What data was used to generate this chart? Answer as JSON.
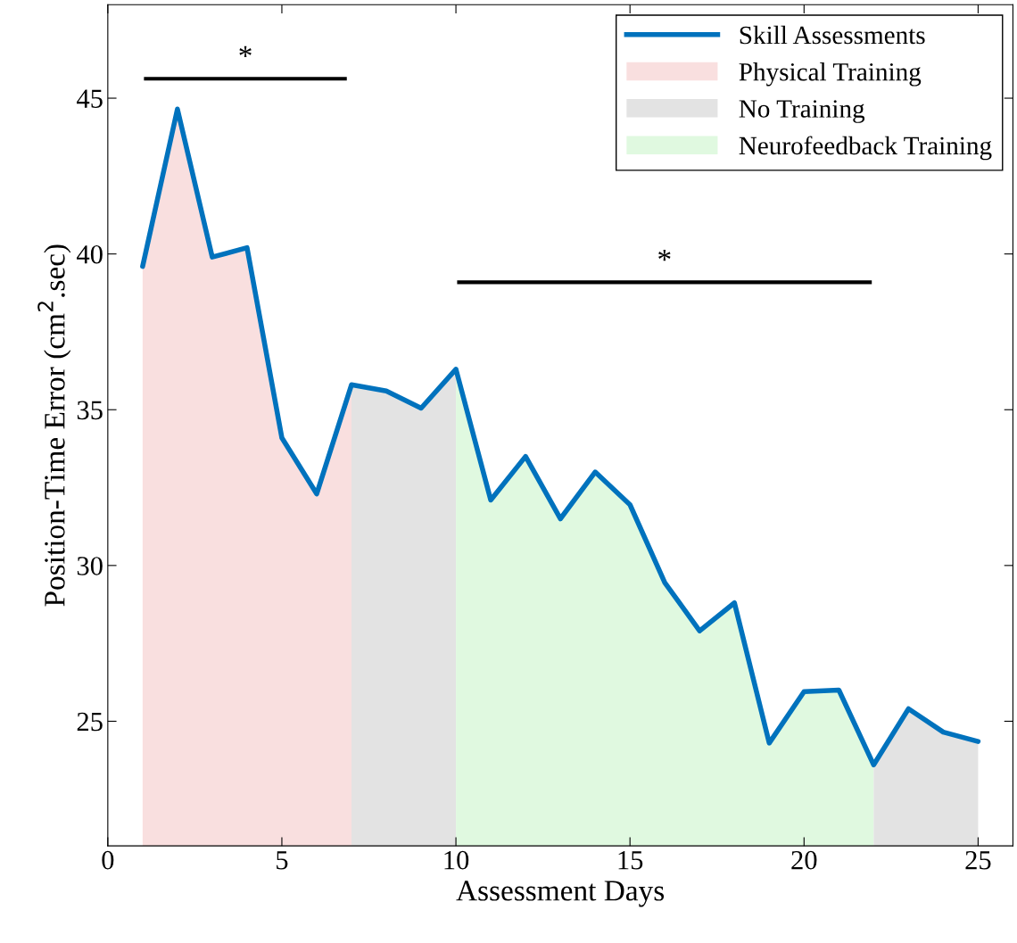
{
  "chart_data": {
    "type": "line",
    "xlabel": "Assessment Days",
    "ylabel": "Position-Time Error (cm$^{2}$.sec)",
    "xlim": [
      0,
      26
    ],
    "xticks": [
      0,
      5,
      10,
      15,
      20,
      25
    ],
    "ylim": [
      21,
      48
    ],
    "yticks": [
      25,
      30,
      35,
      40,
      45
    ],
    "grid": false,
    "legend": "top right",
    "series": [
      {
        "name": "Physical Training",
        "type": "area",
        "color": "#f9dfdf",
        "x": [
          1,
          2,
          3,
          4,
          5,
          6,
          7
        ],
        "values": [
          39.6,
          44.65,
          39.9,
          40.2,
          34.1,
          32.3,
          35.8
        ]
      },
      {
        "name": "No Training",
        "type": "area",
        "color": "#e3e3e3",
        "x": [
          7,
          8,
          9,
          10
        ],
        "values": [
          35.8,
          35.6,
          35.05,
          36.3
        ]
      },
      {
        "name": "Neurofeedback Training",
        "type": "area",
        "color": "#e0f9e0",
        "x": [
          10,
          11,
          12,
          13,
          14,
          15,
          16,
          17,
          18,
          19,
          20,
          21,
          22
        ],
        "values": [
          36.3,
          32.1,
          33.5,
          31.5,
          33.0,
          31.95,
          29.45,
          27.9,
          28.8,
          24.3,
          25.95,
          26.0,
          23.6
        ]
      },
      {
        "type": "area",
        "color": "#e3e3e3",
        "x": [
          22,
          23,
          24,
          25
        ],
        "values": [
          23.6,
          25.4,
          24.65,
          24.35
        ]
      },
      {
        "name": "Skill Assessments",
        "color": "#0072bd",
        "x": [
          1,
          2,
          3,
          4,
          5,
          6,
          7,
          8,
          9,
          10,
          11,
          12,
          13,
          14,
          15,
          16,
          17,
          18,
          19,
          20,
          21,
          22,
          23,
          24,
          25
        ],
        "values": [
          39.6,
          44.65,
          39.9,
          40.2,
          34.1,
          32.3,
          35.8,
          35.6,
          35.05,
          36.3,
          32.1,
          33.5,
          31.5,
          33.0,
          31.95,
          29.45,
          27.9,
          28.8,
          24.3,
          25.95,
          26.0,
          23.6,
          25.4,
          24.65,
          24.35
        ]
      }
    ],
    "annotations": [
      "*",
      "*"
    ]
  }
}
